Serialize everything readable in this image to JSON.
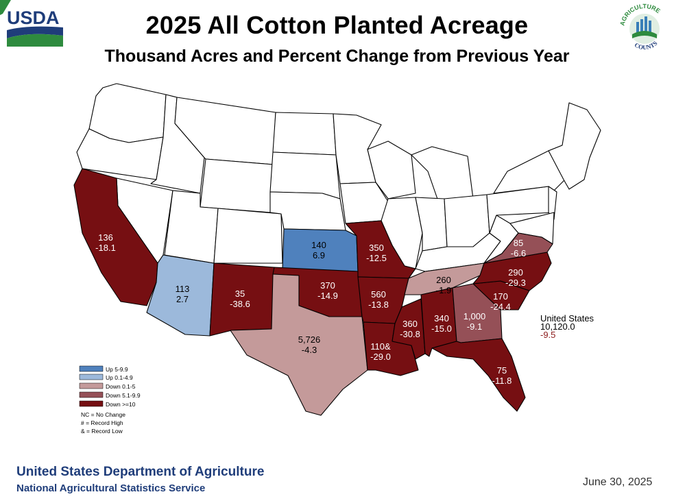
{
  "header": {
    "title": "2025 All Cotton Planted Acreage",
    "subtitle": "Thousand Acres and Percent Change from Previous Year",
    "usda_logo_text": "USDA",
    "ag_counts_logo_text": [
      "AGRICULTURE",
      "COUNTS"
    ]
  },
  "colors": {
    "up_5_9_9": "#4f81bd",
    "up_0_1_4_9": "#9cb9db",
    "down_0_1_5": "#c49a9a",
    "down_5_1_9_9": "#955057",
    "down_ge_10": "#760f12",
    "no_data": "#ffffff",
    "brand_blue": "#1f3d7a",
    "brand_green": "#2e8b3e"
  },
  "states": [
    {
      "state": "California",
      "acres": "136",
      "change": "-18.1",
      "category": "down_ge_10"
    },
    {
      "state": "Arizona",
      "acres": "113",
      "change": "2.7",
      "category": "up_0_1_4_9"
    },
    {
      "state": "New Mexico",
      "acres": "35",
      "change": "-38.6",
      "category": "down_ge_10"
    },
    {
      "state": "Kansas",
      "acres": "140",
      "change": "6.9",
      "category": "up_5_9_9"
    },
    {
      "state": "Oklahoma",
      "acres": "370",
      "change": "-14.9",
      "category": "down_ge_10"
    },
    {
      "state": "Texas",
      "acres": "5,726",
      "change": "-4.3",
      "category": "down_0_1_5"
    },
    {
      "state": "Missouri",
      "acres": "350",
      "change": "-12.5",
      "category": "down_ge_10"
    },
    {
      "state": "Arkansas",
      "acres": "560",
      "change": "-13.8",
      "category": "down_ge_10"
    },
    {
      "state": "Louisiana",
      "acres": "110&",
      "change": "-29.0",
      "category": "down_ge_10"
    },
    {
      "state": "Mississippi",
      "acres": "360",
      "change": "-30.8",
      "category": "down_ge_10"
    },
    {
      "state": "Tennessee",
      "acres": "260",
      "change": "-1.9",
      "category": "down_0_1_5"
    },
    {
      "state": "Alabama",
      "acres": "340",
      "change": "-15.0",
      "category": "down_ge_10"
    },
    {
      "state": "Georgia",
      "acres": "1,000",
      "change": "-9.1",
      "category": "down_5_1_9_9"
    },
    {
      "state": "Florida",
      "acres": "75",
      "change": "-11.8",
      "category": "down_ge_10"
    },
    {
      "state": "South Carolina",
      "acres": "170",
      "change": "-24.4",
      "category": "down_ge_10"
    },
    {
      "state": "North Carolina",
      "acres": "290",
      "change": "-29.3",
      "category": "down_ge_10"
    },
    {
      "state": "Virginia",
      "acres": "85",
      "change": "-6.6",
      "category": "down_5_1_9_9"
    }
  ],
  "us_total": {
    "label": "United States",
    "acres": "10,120.0",
    "change": "-9.5"
  },
  "legend": {
    "items": [
      {
        "label": "Up 5-9.9",
        "category": "up_5_9_9"
      },
      {
        "label": "Up 0.1-4.9",
        "category": "up_0_1_4_9"
      },
      {
        "label": "Down 0.1-5",
        "category": "down_0_1_5"
      },
      {
        "label": "Down 5.1-9.9",
        "category": "down_5_1_9_9"
      },
      {
        "label": "Down >=10",
        "category": "down_ge_10"
      }
    ],
    "notes": [
      "NC = No Change",
      "# = Record High",
      "& = Record Low"
    ]
  },
  "footer": {
    "department": "United States Department of Agriculture",
    "service": "National Agricultural Statistics Service",
    "date": "June 30, 2025"
  }
}
